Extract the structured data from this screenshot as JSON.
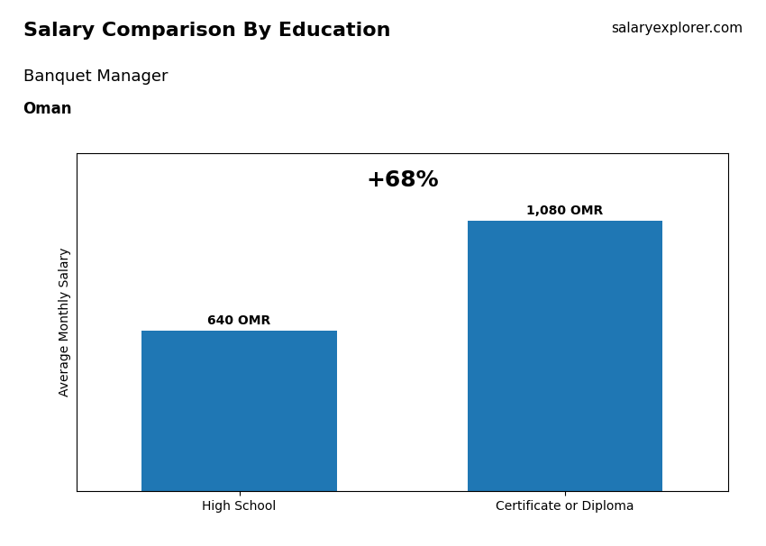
{
  "chart_data": {
    "type": "bar",
    "title": "Salary Comparison By Education",
    "subtitle": "Banquet Manager",
    "categories": [
      "High School",
      "Certificate or Diploma"
    ],
    "values": [
      640,
      1080
    ],
    "value_labels": [
      "640 OMR",
      "1,080 OMR"
    ],
    "data_labels": true,
    "ylabel": "Average Monthly Salary",
    "ylim": [
      0,
      1350
    ],
    "yticks": [],
    "tick_labels": "x",
    "annotations": [
      "+68%",
      "Oman",
      "salaryexplorer.com"
    ],
    "grid": false
  }
}
